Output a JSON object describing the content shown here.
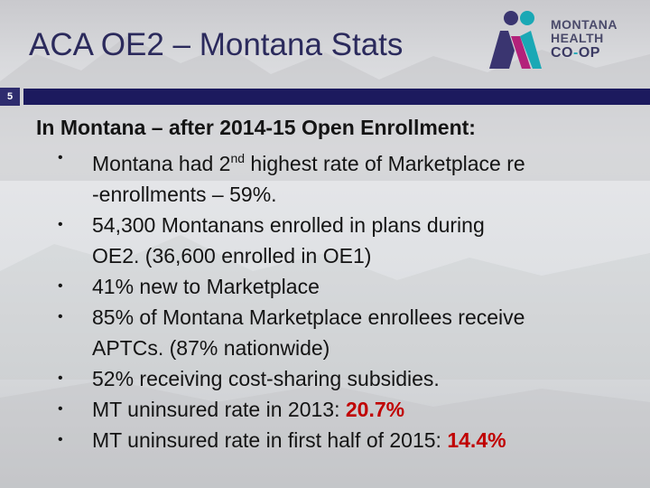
{
  "slide": {
    "title": "ACA OE2 – Montana Stats",
    "number": "5"
  },
  "logo": {
    "line1": "MONTANA",
    "line2": "HEALTH",
    "line3_a": "CO",
    "line3_b": "-",
    "line3_c": "OP",
    "colors": {
      "purple": "#3a3570",
      "teal": "#1aa8b5",
      "magenta": "#b3227a"
    }
  },
  "content": {
    "heading": "In Montana – after 2014-15 Open Enrollment:",
    "bullet_char": "•",
    "bullets": {
      "b1": {
        "pre": "Montana had 2",
        "sup": "nd",
        "rest_line1": " highest rate of Marketplace re",
        "line2": "-enrollments – 59%."
      },
      "b2": {
        "line1": "54,300 Montanans enrolled in plans during",
        "line2": "OE2.  (36,600 enrolled in OE1)"
      },
      "b3": {
        "text": "41% new to Marketplace"
      },
      "b4": {
        "line1": "85% of Montana Marketplace enrollees receive",
        "line2": "APTCs. (87% nationwide)"
      },
      "b5": {
        "text": "52% receiving cost-sharing subsidies."
      },
      "b6": {
        "text": "MT uninsured rate in 2013:  ",
        "value": "20.7%"
      },
      "b7": {
        "text": "MT uninsured rate in first half of 2015:  ",
        "value": "14.4%"
      }
    }
  },
  "colors": {
    "title": "#2b2a5c",
    "rule": "#1c1a5e",
    "highlight": "#c00000"
  }
}
